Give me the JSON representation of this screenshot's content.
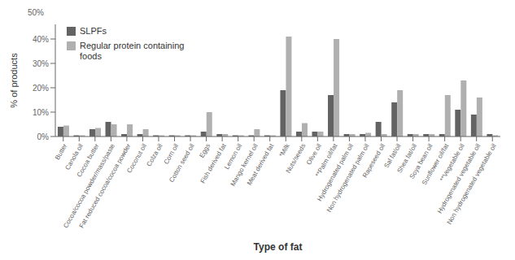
{
  "chart_data": {
    "type": "bar",
    "xlabel": "Type of fat",
    "ylabel": "% of products",
    "annotations": [
      "50%"
    ],
    "categories": [
      "Butter",
      "Canola oil",
      "Cocoa butter",
      "Cocoa/cocoa powder/mass/paste",
      "Fat reduced cocoa/cocoa powder",
      "Coconut oil",
      "Colza oil",
      "Corn oil",
      "Cotton seed oil",
      "Eggs",
      "Fish derived fat",
      "Lemon oil",
      "Mango kernel oil",
      "Meat derived fat",
      "*Milk",
      "Nuts/seeds",
      "Olive oil",
      "**Palm oil/fat",
      "Hydrogenated palm oil",
      "Non hydrogenated palm oil",
      "Rapeseed oil",
      "Sal fat/oil",
      "Shea fat/oil",
      "Soya bean oil",
      "Sunflower oil/fat",
      "**Vegetable oil",
      "Hydrogenated vegetable oil",
      "Non hydrogenated vegetable oil"
    ],
    "series": [
      {
        "name": "SLPFs",
        "color": "#636363",
        "values": [
          4,
          0.5,
          3,
          6,
          1,
          1,
          0.5,
          0.5,
          0.5,
          2,
          1,
          0.5,
          0.5,
          0.5,
          19,
          2,
          2,
          17,
          1,
          1,
          6,
          14,
          1,
          1,
          1,
          11,
          9,
          1
        ]
      },
      {
        "name": "Regular protein containing\nfoods",
        "color": "#b0b0b0",
        "values": [
          4.5,
          0.5,
          3.5,
          5,
          5,
          3,
          0.5,
          0.5,
          0.5,
          10,
          1,
          0.5,
          3,
          0.5,
          41,
          5.5,
          2,
          40,
          1,
          1.5,
          1,
          19,
          1,
          1,
          17,
          23,
          16,
          0.5
        ]
      }
    ],
    "ylim": [
      0,
      46
    ],
    "yticks": [
      {
        "value": 0,
        "label": "0%"
      },
      {
        "value": 10,
        "label": "10%"
      },
      {
        "value": 20,
        "label": "20%"
      },
      {
        "value": 30,
        "label": "30%"
      },
      {
        "value": 40,
        "label": "40%"
      }
    ],
    "legend": "upper left",
    "grid": false
  }
}
